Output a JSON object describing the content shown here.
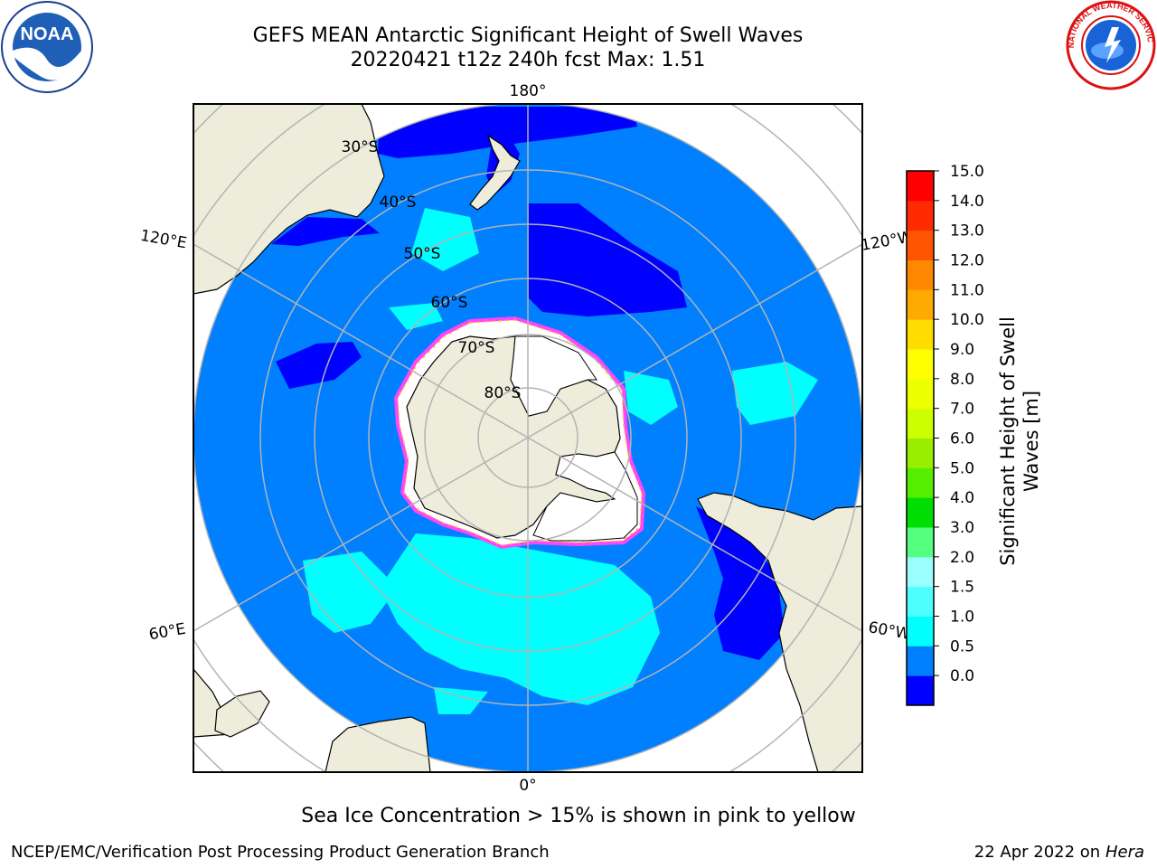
{
  "header": {
    "title_line1": "GEFS MEAN Antarctic Significant Height of Swell Waves",
    "title_line2": "20220421 t12z 240h fcst   Max: 1.51"
  },
  "logos": {
    "left": {
      "name": "noaa-logo",
      "text": "NOAA"
    },
    "right": {
      "name": "nws-logo",
      "text": "NATIONAL WEATHER SERVICE"
    }
  },
  "map": {
    "projection": "south-polar-stereographic",
    "longitude_labels": {
      "top": "180°",
      "bottom": "0°",
      "upper_left": "120°E",
      "upper_right": "120°W",
      "lower_left": "60°E",
      "lower_right": "60°W"
    },
    "latitude_labels": [
      "30°S",
      "40°S",
      "50°S",
      "60°S",
      "70°S",
      "80°S"
    ],
    "colors": {
      "land": "#eeeddc",
      "ocean_0_0.5": "#0000ff",
      "ocean_0.5_1.0": "#0080ff",
      "ocean_1.0_1.5": "#00ffff",
      "sea_ice": "#ffffff",
      "ice_edge": "#ff44ff"
    }
  },
  "colorbar": {
    "label": "Significant Height of Swell Waves [m]",
    "label_line1": "Significant Height of Swell",
    "label_line2": "Waves [m]",
    "ticks": [
      "15.0",
      "14.0",
      "13.0",
      "12.0",
      "11.0",
      "10.0",
      "9.0",
      "8.0",
      "7.0",
      "6.0",
      "5.0",
      "4.0",
      "3.0",
      "2.0",
      "1.5",
      "1.0",
      "0.5",
      "0.0"
    ],
    "colors": [
      "#0000ff",
      "#0080ff",
      "#00ffff",
      "#4dffff",
      "#99ffff",
      "#55ff7f",
      "#00dd00",
      "#55ee00",
      "#99ee00",
      "#ccff00",
      "#eeff00",
      "#ffff00",
      "#ffdd00",
      "#ffaa00",
      "#ff8800",
      "#ff5500",
      "#ff2a00",
      "#ff0000"
    ]
  },
  "footer": {
    "caption": "Sea Ice Concentration > 15% is shown in pink to yellow",
    "credit": "NCEP/EMC/Verification Post Processing Product Generation Branch",
    "date": "22 Apr 2022 on",
    "machine": "Hera"
  }
}
